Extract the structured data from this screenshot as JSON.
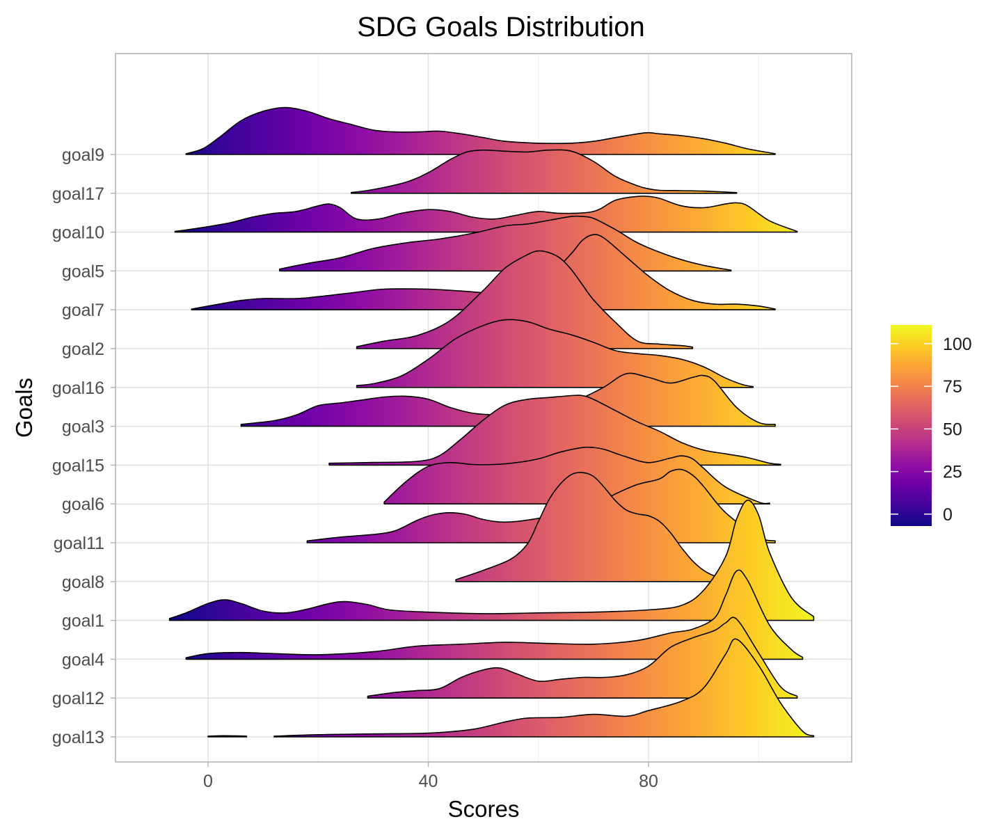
{
  "chart_data": {
    "type": "ridgeline",
    "title": "SDG Goals Distribution",
    "xlabel": "Scores",
    "ylabel": "Goals",
    "xlim": [
      -17,
      117
    ],
    "x_ticks": [
      0,
      40,
      80
    ],
    "grid": true,
    "legend": {
      "position": "right",
      "type": "colorbar",
      "palette": "plasma",
      "range": [
        -7,
        111
      ],
      "ticks": [
        0,
        25,
        50,
        75,
        100
      ],
      "colors": [
        "#0d0887",
        "#41049d",
        "#6a00a8",
        "#8f0da4",
        "#b12a90",
        "#cc4778",
        "#e16462",
        "#f2844b",
        "#fca636",
        "#fcce25",
        "#f0f921"
      ]
    },
    "series": [
      {
        "name": "goal13",
        "segments": [
          {
            "x": [
              0,
              2,
              4,
              7
            ],
            "y": [
              0.02,
              0.03,
              0.03,
              0.02
            ]
          },
          {
            "x": [
              12,
              20,
              30,
              40,
              48,
              54,
              58,
              64,
              70,
              76,
              80,
              86,
              90,
              94,
              96,
              100,
              104,
              108,
              110
            ],
            "y": [
              0.02,
              0.06,
              0.08,
              0.1,
              0.2,
              0.4,
              0.5,
              0.52,
              0.6,
              0.55,
              0.7,
              0.95,
              1.3,
              2.2,
              2.6,
              1.9,
              0.9,
              0.15,
              0.03
            ]
          }
        ]
      },
      {
        "name": "goal12",
        "segments": [
          {
            "x": [
              29,
              34,
              38,
              42,
              46,
              50,
              53,
              56,
              60,
              64,
              68,
              72,
              76,
              80,
              84,
              88,
              92,
              94,
              96,
              100,
              104,
              107
            ],
            "y": [
              0.05,
              0.15,
              0.2,
              0.25,
              0.55,
              0.75,
              0.8,
              0.65,
              0.45,
              0.5,
              0.55,
              0.55,
              0.62,
              0.85,
              1.35,
              1.6,
              1.8,
              2.0,
              2.1,
              1.2,
              0.3,
              0.05
            ]
          }
        ]
      },
      {
        "name": "goal4",
        "segments": [
          {
            "x": [
              -4,
              0,
              6,
              12,
              20,
              30,
              38,
              46,
              54,
              62,
              70,
              78,
              84,
              88,
              92,
              94,
              96,
              98,
              102,
              106,
              108
            ],
            "y": [
              0.04,
              0.15,
              0.18,
              0.15,
              0.12,
              0.2,
              0.35,
              0.4,
              0.45,
              0.42,
              0.4,
              0.5,
              0.7,
              0.8,
              1.1,
              1.7,
              2.35,
              2.1,
              0.9,
              0.25,
              0.05
            ]
          }
        ]
      },
      {
        "name": "goal1",
        "segments": [
          {
            "x": [
              -7,
              -4,
              0,
              3,
              6,
              10,
              14,
              18,
              22,
              25,
              29,
              33,
              40,
              50,
              60,
              70,
              80,
              86,
              90,
              94,
              96,
              98,
              100,
              102,
              106,
              110
            ],
            "y": [
              0.05,
              0.2,
              0.45,
              0.55,
              0.45,
              0.25,
              0.2,
              0.3,
              0.45,
              0.5,
              0.42,
              0.28,
              0.22,
              0.18,
              0.2,
              0.22,
              0.28,
              0.4,
              0.8,
              1.7,
              2.7,
              3.2,
              2.8,
              1.8,
              0.6,
              0.1
            ]
          }
        ]
      },
      {
        "name": "goal8",
        "segments": [
          {
            "x": [
              45,
              50,
              55,
              58,
              60,
              62,
              64,
              66,
              68,
              70,
              72,
              74,
              76,
              78,
              80,
              82,
              84,
              86,
              88,
              90,
              92,
              95
            ],
            "y": [
              0.05,
              0.3,
              0.6,
              1.0,
              1.6,
              2.2,
              2.6,
              2.85,
              2.9,
              2.8,
              2.5,
              2.15,
              1.9,
              1.8,
              1.75,
              1.6,
              1.3,
              0.9,
              0.55,
              0.3,
              0.15,
              0.05
            ]
          }
        ]
      },
      {
        "name": "goal11",
        "segments": [
          {
            "x": [
              18,
              24,
              30,
              34,
              38,
              41,
              44,
              47,
              50,
              54,
              60,
              66,
              70,
              74,
              78,
              82,
              84,
              86,
              88,
              90,
              94,
              100,
              103
            ],
            "y": [
              0.05,
              0.15,
              0.22,
              0.32,
              0.6,
              0.75,
              0.8,
              0.75,
              0.62,
              0.55,
              0.65,
              0.85,
              1.0,
              1.3,
              1.55,
              1.7,
              1.9,
              1.95,
              1.8,
              1.5,
              0.8,
              0.15,
              0.05
            ]
          }
        ]
      },
      {
        "name": "goal6",
        "segments": [
          {
            "x": [
              32,
              36,
              40,
              44,
              48,
              52,
              56,
              60,
              64,
              68,
              70,
              72,
              76,
              80,
              84,
              86,
              88,
              90,
              94,
              100,
              102
            ],
            "y": [
              0.05,
              0.6,
              1.0,
              1.1,
              1.05,
              1.05,
              1.1,
              1.2,
              1.38,
              1.5,
              1.5,
              1.45,
              1.25,
              1.1,
              1.22,
              1.28,
              1.2,
              0.95,
              0.45,
              0.05,
              0.02
            ]
          }
        ]
      },
      {
        "name": "goal15",
        "segments": [
          {
            "x": [
              22,
              30,
              38,
              42,
              46,
              50,
              54,
              58,
              62,
              66,
              68,
              70,
              74,
              78,
              82,
              86,
              90,
              94,
              98,
              102,
              104
            ],
            "y": [
              0.05,
              0.07,
              0.1,
              0.25,
              0.7,
              1.2,
              1.6,
              1.75,
              1.8,
              1.85,
              1.85,
              1.75,
              1.45,
              1.15,
              0.9,
              0.6,
              0.4,
              0.3,
              0.2,
              0.05,
              0.02
            ]
          }
        ]
      },
      {
        "name": "goal3",
        "segments": [
          {
            "x": [
              6,
              12,
              16,
              20,
              24,
              28,
              32,
              36,
              40,
              44,
              48,
              52,
              56,
              60,
              64,
              68,
              72,
              76,
              80,
              84,
              88,
              90,
              92,
              96,
              100,
              103
            ],
            "y": [
              0.05,
              0.15,
              0.3,
              0.55,
              0.62,
              0.7,
              0.78,
              0.8,
              0.72,
              0.5,
              0.35,
              0.3,
              0.25,
              0.3,
              0.45,
              0.75,
              1.05,
              1.4,
              1.3,
              1.15,
              1.3,
              1.35,
              1.2,
              0.5,
              0.1,
              0.05
            ]
          }
        ]
      },
      {
        "name": "goal16",
        "segments": [
          {
            "x": [
              27,
              30,
              35,
              40,
              45,
              50,
              54,
              58,
              62,
              66,
              70,
              74,
              78,
              82,
              86,
              90,
              94,
              97,
              99
            ],
            "y": [
              0.05,
              0.1,
              0.3,
              0.75,
              1.3,
              1.65,
              1.8,
              1.75,
              1.55,
              1.4,
              1.2,
              0.98,
              0.9,
              0.85,
              0.75,
              0.55,
              0.25,
              0.08,
              0.02
            ]
          }
        ]
      },
      {
        "name": "goal2",
        "segments": [
          {
            "x": [
              27,
              32,
              38,
              44,
              50,
              54,
              58,
              60,
              62,
              64,
              66,
              68,
              70,
              74,
              78,
              82,
              86,
              88
            ],
            "y": [
              0.05,
              0.2,
              0.35,
              0.75,
              1.55,
              2.15,
              2.5,
              2.6,
              2.55,
              2.4,
              2.1,
              1.7,
              1.3,
              0.7,
              0.2,
              0.12,
              0.08,
              0.04
            ]
          }
        ]
      },
      {
        "name": "goal7",
        "segments": [
          {
            "x": [
              -3,
              2,
              6,
              10,
              16,
              20,
              26,
              32,
              40,
              46,
              52,
              58,
              62,
              66,
              68,
              70,
              72,
              76,
              80,
              84,
              88,
              92,
              96,
              100,
              103
            ],
            "y": [
              0.02,
              0.15,
              0.25,
              0.3,
              0.3,
              0.35,
              0.45,
              0.55,
              0.55,
              0.5,
              0.45,
              0.55,
              0.9,
              1.5,
              1.85,
              2.0,
              1.9,
              1.4,
              0.9,
              0.5,
              0.25,
              0.15,
              0.15,
              0.1,
              0.02
            ]
          }
        ]
      },
      {
        "name": "goal5",
        "segments": [
          {
            "x": [
              13,
              18,
              24,
              30,
              36,
              42,
              48,
              54,
              58,
              62,
              66,
              68,
              70,
              74,
              78,
              82,
              86,
              90,
              95
            ],
            "y": [
              0.05,
              0.2,
              0.35,
              0.6,
              0.75,
              0.85,
              1.0,
              1.2,
              1.25,
              1.35,
              1.45,
              1.45,
              1.4,
              1.1,
              0.75,
              0.5,
              0.3,
              0.15,
              0.02
            ]
          }
        ]
      },
      {
        "name": "goal10",
        "segments": [
          {
            "x": [
              -6,
              -2,
              4,
              8,
              12,
              16,
              20,
              22,
              24,
              27,
              31,
              35,
              40,
              44,
              48,
              52,
              56,
              60,
              64,
              70,
              74,
              78,
              80,
              82,
              86,
              90,
              94,
              96,
              98,
              102,
              107
            ],
            "y": [
              0.02,
              0.1,
              0.25,
              0.4,
              0.5,
              0.55,
              0.7,
              0.75,
              0.65,
              0.35,
              0.35,
              0.5,
              0.6,
              0.55,
              0.4,
              0.35,
              0.45,
              0.55,
              0.5,
              0.55,
              0.85,
              0.95,
              0.95,
              0.9,
              0.7,
              0.65,
              0.75,
              0.78,
              0.7,
              0.3,
              0.02
            ]
          }
        ]
      },
      {
        "name": "goal17",
        "segments": [
          {
            "x": [
              26,
              30,
              36,
              40,
              44,
              47,
              50,
              54,
              58,
              62,
              66,
              70,
              74,
              78,
              80,
              82,
              86,
              90,
              96
            ],
            "y": [
              0.02,
              0.1,
              0.3,
              0.55,
              0.9,
              1.1,
              1.15,
              1.12,
              1.1,
              1.15,
              1.12,
              0.85,
              0.45,
              0.2,
              0.12,
              0.08,
              0.07,
              0.06,
              0.02
            ]
          }
        ]
      },
      {
        "name": "goal9",
        "segments": [
          {
            "x": [
              -4,
              -1,
              2,
              6,
              10,
              14,
              18,
              22,
              26,
              30,
              34,
              38,
              42,
              46,
              50,
              54,
              60,
              66,
              70,
              74,
              78,
              80,
              82,
              86,
              90,
              94,
              98,
              103
            ],
            "y": [
              0.02,
              0.15,
              0.45,
              0.9,
              1.15,
              1.25,
              1.15,
              0.95,
              0.8,
              0.65,
              0.6,
              0.6,
              0.62,
              0.55,
              0.45,
              0.35,
              0.3,
              0.3,
              0.35,
              0.45,
              0.55,
              0.58,
              0.55,
              0.5,
              0.42,
              0.3,
              0.15,
              0.02
            ]
          }
        ]
      }
    ]
  }
}
